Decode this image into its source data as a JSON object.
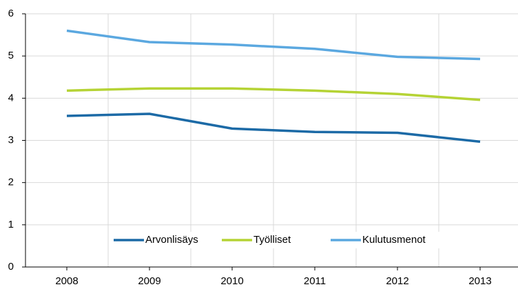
{
  "chart_data": {
    "type": "line",
    "categories": [
      "2008",
      "2009",
      "2010",
      "2011",
      "2012",
      "2013"
    ],
    "series": [
      {
        "name": "Arvonlisäys",
        "color": "#1c6aa6",
        "values": [
          3.58,
          3.63,
          3.28,
          3.2,
          3.18,
          2.97
        ]
      },
      {
        "name": "Työlliset",
        "color": "#b5d335",
        "values": [
          4.18,
          4.23,
          4.23,
          4.18,
          4.1,
          3.96
        ]
      },
      {
        "name": "Kulutusmenot",
        "color": "#5ba8e0",
        "values": [
          5.6,
          5.33,
          5.27,
          5.17,
          4.98,
          4.93
        ]
      }
    ],
    "ylim": [
      0,
      6
    ],
    "yticks": [
      0,
      1,
      2,
      3,
      4,
      5,
      6
    ],
    "grid": true,
    "legend": "bottom"
  }
}
